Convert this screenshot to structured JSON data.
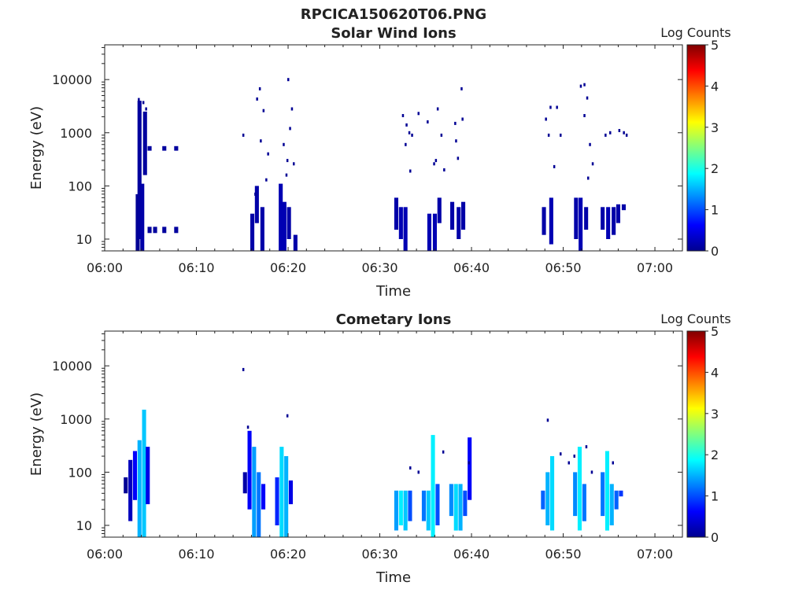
{
  "figure_title": "RPCICA150620T06.PNG",
  "colorbar_ticks": [
    "0",
    "1",
    "2",
    "3",
    "4",
    "5"
  ],
  "chart_data": [
    {
      "type": "heatmap",
      "title": "Solar Wind Ions",
      "xlabel": "Time",
      "ylabel": "Energy (eV)",
      "colorbar_label": "Log Counts",
      "colorbar_range": [
        0,
        5
      ],
      "colormap": "jet",
      "y_scale": "log",
      "xlim": [
        "06:00",
        "07:03"
      ],
      "ylim": [
        6,
        45000
      ],
      "x_ticks": [
        "06:00",
        "06:10",
        "06:20",
        "06:30",
        "06:40",
        "06:50",
        "07:00"
      ],
      "y_ticks": [
        "10",
        "100",
        "1000",
        "10000"
      ],
      "columns": [
        {
          "t": 3.6,
          "e": [
            4.5,
            70
          ],
          "v": 0.1
        },
        {
          "t": 3.8,
          "e": [
            10,
            4000
          ],
          "v": 0.15
        },
        {
          "t": 4.1,
          "e": [
            6,
            110
          ],
          "v": 0.2
        },
        {
          "t": 4.4,
          "e": [
            160,
            2500
          ],
          "v": 0.15
        },
        {
          "t": 4.9,
          "e": [
            13,
            17
          ],
          "v": 0.15
        },
        {
          "t": 5.5,
          "e": [
            13,
            17
          ],
          "v": 0.15
        },
        {
          "t": 6.5,
          "e": [
            13,
            17
          ],
          "v": 0.15
        },
        {
          "t": 7.8,
          "e": [
            13,
            17
          ],
          "v": 0.15
        },
        {
          "t": 4.9,
          "e": [
            460,
            560
          ],
          "v": 0.15
        },
        {
          "t": 6.5,
          "e": [
            460,
            560
          ],
          "v": 0.15
        },
        {
          "t": 7.8,
          "e": [
            460,
            560
          ],
          "v": 0.15
        },
        {
          "t": 16.1,
          "e": [
            5,
            30
          ],
          "v": 0.2
        },
        {
          "t": 16.6,
          "e": [
            20,
            100
          ],
          "v": 0.2
        },
        {
          "t": 17.2,
          "e": [
            6,
            40
          ],
          "v": 0.2
        },
        {
          "t": 19.2,
          "e": [
            6,
            110
          ],
          "v": 0.25
        },
        {
          "t": 19.6,
          "e": [
            6,
            50
          ],
          "v": 0.25
        },
        {
          "t": 20.1,
          "e": [
            10,
            40
          ],
          "v": 0.2
        },
        {
          "t": 20.8,
          "e": [
            5,
            12
          ],
          "v": 0.2
        },
        {
          "t": 31.8,
          "e": [
            15,
            60
          ],
          "v": 0.2
        },
        {
          "t": 32.3,
          "e": [
            10,
            40
          ],
          "v": 0.25
        },
        {
          "t": 32.8,
          "e": [
            5,
            40
          ],
          "v": 0.25
        },
        {
          "t": 35.4,
          "e": [
            5,
            30
          ],
          "v": 0.25
        },
        {
          "t": 36.0,
          "e": [
            5,
            30
          ],
          "v": 0.25
        },
        {
          "t": 36.5,
          "e": [
            20,
            60
          ],
          "v": 0.2
        },
        {
          "t": 37.9,
          "e": [
            15,
            50
          ],
          "v": 0.2
        },
        {
          "t": 38.6,
          "e": [
            10,
            40
          ],
          "v": 0.2
        },
        {
          "t": 39.1,
          "e": [
            15,
            50
          ],
          "v": 0.2
        },
        {
          "t": 47.9,
          "e": [
            12,
            40
          ],
          "v": 0.2
        },
        {
          "t": 48.7,
          "e": [
            8,
            60
          ],
          "v": 0.25
        },
        {
          "t": 51.4,
          "e": [
            10,
            60
          ],
          "v": 0.2
        },
        {
          "t": 51.9,
          "e": [
            5,
            60
          ],
          "v": 0.25
        },
        {
          "t": 52.5,
          "e": [
            15,
            40
          ],
          "v": 0.2
        },
        {
          "t": 54.3,
          "e": [
            15,
            40
          ],
          "v": 0.2
        },
        {
          "t": 54.9,
          "e": [
            10,
            40
          ],
          "v": 0.25
        },
        {
          "t": 55.5,
          "e": [
            12,
            40
          ],
          "v": 0.2
        },
        {
          "t": 56.0,
          "e": [
            20,
            45
          ],
          "v": 0.2
        },
        {
          "t": 56.6,
          "e": [
            35,
            45
          ],
          "v": 0.2
        }
      ],
      "points": [
        [
          3.7,
          4200
        ],
        [
          4.2,
          3700
        ],
        [
          4.5,
          2800
        ],
        [
          15.1,
          900
        ],
        [
          16.4,
          70
        ],
        [
          16.6,
          4300
        ],
        [
          16.9,
          6700
        ],
        [
          17.0,
          700
        ],
        [
          17.3,
          2600
        ],
        [
          17.6,
          130
        ],
        [
          17.8,
          400
        ],
        [
          20.0,
          10000
        ],
        [
          20.2,
          1200
        ],
        [
          20.4,
          2800
        ],
        [
          20.6,
          260
        ],
        [
          19.5,
          600
        ],
        [
          19.9,
          300
        ],
        [
          19.8,
          160
        ],
        [
          32.5,
          2100
        ],
        [
          32.9,
          1400
        ],
        [
          33.2,
          1000
        ],
        [
          33.5,
          900
        ],
        [
          34.2,
          2300
        ],
        [
          35.2,
          1600
        ],
        [
          36.3,
          2800
        ],
        [
          36.7,
          900
        ],
        [
          37.0,
          200
        ],
        [
          38.2,
          1500
        ],
        [
          38.3,
          700
        ],
        [
          38.9,
          6700
        ],
        [
          39.0,
          1800
        ],
        [
          33.3,
          190
        ],
        [
          32.8,
          600
        ],
        [
          35.9,
          260
        ],
        [
          36.1,
          300
        ],
        [
          38.5,
          330
        ],
        [
          48.1,
          1800
        ],
        [
          48.4,
          900
        ],
        [
          48.6,
          3000
        ],
        [
          49.3,
          3000
        ],
        [
          49.7,
          900
        ],
        [
          51.9,
          7500
        ],
        [
          52.3,
          8000
        ],
        [
          52.6,
          4500
        ],
        [
          52.3,
          2100
        ],
        [
          52.9,
          600
        ],
        [
          53.2,
          260
        ],
        [
          54.6,
          900
        ],
        [
          55.1,
          1000
        ],
        [
          56.1,
          1100
        ],
        [
          56.6,
          1000
        ],
        [
          56.9,
          900
        ],
        [
          49.0,
          230
        ],
        [
          52.7,
          140
        ]
      ]
    },
    {
      "type": "heatmap",
      "title": "Cometary Ions",
      "xlabel": "Time",
      "ylabel": "Energy (eV)",
      "colorbar_label": "Log Counts",
      "colorbar_range": [
        0,
        5
      ],
      "colormap": "jet",
      "y_scale": "log",
      "xlim": [
        "06:00",
        "07:03"
      ],
      "ylim": [
        6,
        45000
      ],
      "x_ticks": [
        "06:00",
        "06:10",
        "06:20",
        "06:30",
        "06:40",
        "06:50",
        "07:00"
      ],
      "y_ticks": [
        "10",
        "100",
        "1000",
        "10000"
      ],
      "columns": [
        {
          "t": 2.3,
          "e": [
            40,
            80
          ],
          "v": 0.1
        },
        {
          "t": 2.8,
          "e": [
            12,
            170
          ],
          "v": 0.3
        },
        {
          "t": 3.3,
          "e": [
            30,
            250
          ],
          "v": 0.6
        },
        {
          "t": 3.8,
          "e": [
            6,
            400
          ],
          "v": 1.5
        },
        {
          "t": 4.3,
          "e": [
            6,
            1500
          ],
          "v": 1.6
        },
        {
          "t": 4.7,
          "e": [
            25,
            300
          ],
          "v": 0.5
        },
        {
          "t": 15.3,
          "e": [
            40,
            100
          ],
          "v": 0.2
        },
        {
          "t": 15.8,
          "e": [
            20,
            600
          ],
          "v": 0.6
        },
        {
          "t": 16.3,
          "e": [
            6,
            300
          ],
          "v": 1.4
        },
        {
          "t": 16.8,
          "e": [
            6,
            100
          ],
          "v": 1.2
        },
        {
          "t": 17.3,
          "e": [
            20,
            60
          ],
          "v": 0.6
        },
        {
          "t": 18.8,
          "e": [
            10,
            80
          ],
          "v": 0.8
        },
        {
          "t": 19.3,
          "e": [
            6,
            300
          ],
          "v": 1.7
        },
        {
          "t": 19.8,
          "e": [
            6,
            200
          ],
          "v": 1.5
        },
        {
          "t": 20.3,
          "e": [
            25,
            70
          ],
          "v": 0.5
        },
        {
          "t": 31.8,
          "e": [
            8,
            45
          ],
          "v": 1.4
        },
        {
          "t": 32.3,
          "e": [
            10,
            45
          ],
          "v": 1.8
        },
        {
          "t": 32.8,
          "e": [
            8,
            45
          ],
          "v": 1.6
        },
        {
          "t": 33.3,
          "e": [
            12,
            45
          ],
          "v": 1.0
        },
        {
          "t": 34.8,
          "e": [
            12,
            45
          ],
          "v": 1.2
        },
        {
          "t": 35.3,
          "e": [
            8,
            45
          ],
          "v": 1.6
        },
        {
          "t": 35.8,
          "e": [
            6,
            500
          ],
          "v": 1.8
        },
        {
          "t": 36.3,
          "e": [
            10,
            60
          ],
          "v": 1.0
        },
        {
          "t": 37.8,
          "e": [
            15,
            60
          ],
          "v": 1.3
        },
        {
          "t": 38.3,
          "e": [
            8,
            60
          ],
          "v": 1.7
        },
        {
          "t": 38.8,
          "e": [
            8,
            60
          ],
          "v": 1.5
        },
        {
          "t": 39.3,
          "e": [
            15,
            45
          ],
          "v": 1.0
        },
        {
          "t": 39.8,
          "e": [
            30,
            450
          ],
          "v": 0.6
        },
        {
          "t": 47.8,
          "e": [
            20,
            45
          ],
          "v": 1.1
        },
        {
          "t": 48.3,
          "e": [
            10,
            100
          ],
          "v": 1.5
        },
        {
          "t": 48.8,
          "e": [
            8,
            200
          ],
          "v": 1.7
        },
        {
          "t": 51.3,
          "e": [
            15,
            100
          ],
          "v": 1.3
        },
        {
          "t": 51.8,
          "e": [
            8,
            300
          ],
          "v": 1.8
        },
        {
          "t": 52.3,
          "e": [
            12,
            60
          ],
          "v": 1.2
        },
        {
          "t": 54.3,
          "e": [
            15,
            100
          ],
          "v": 1.2
        },
        {
          "t": 54.8,
          "e": [
            8,
            250
          ],
          "v": 1.8
        },
        {
          "t": 55.3,
          "e": [
            10,
            60
          ],
          "v": 1.5
        },
        {
          "t": 55.8,
          "e": [
            20,
            45
          ],
          "v": 1.1
        },
        {
          "t": 56.3,
          "e": [
            35,
            45
          ],
          "v": 0.9
        }
      ],
      "points": [
        [
          15.1,
          8500
        ],
        [
          15.6,
          700
        ],
        [
          19.9,
          1150
        ],
        [
          48.3,
          950
        ],
        [
          49.7,
          220
        ],
        [
          50.6,
          150
        ],
        [
          51.2,
          200
        ],
        [
          52.5,
          300
        ],
        [
          55.4,
          150
        ],
        [
          36.9,
          240
        ],
        [
          33.3,
          120
        ],
        [
          34.2,
          100
        ],
        [
          39.7,
          150
        ],
        [
          53.1,
          100
        ]
      ]
    }
  ]
}
